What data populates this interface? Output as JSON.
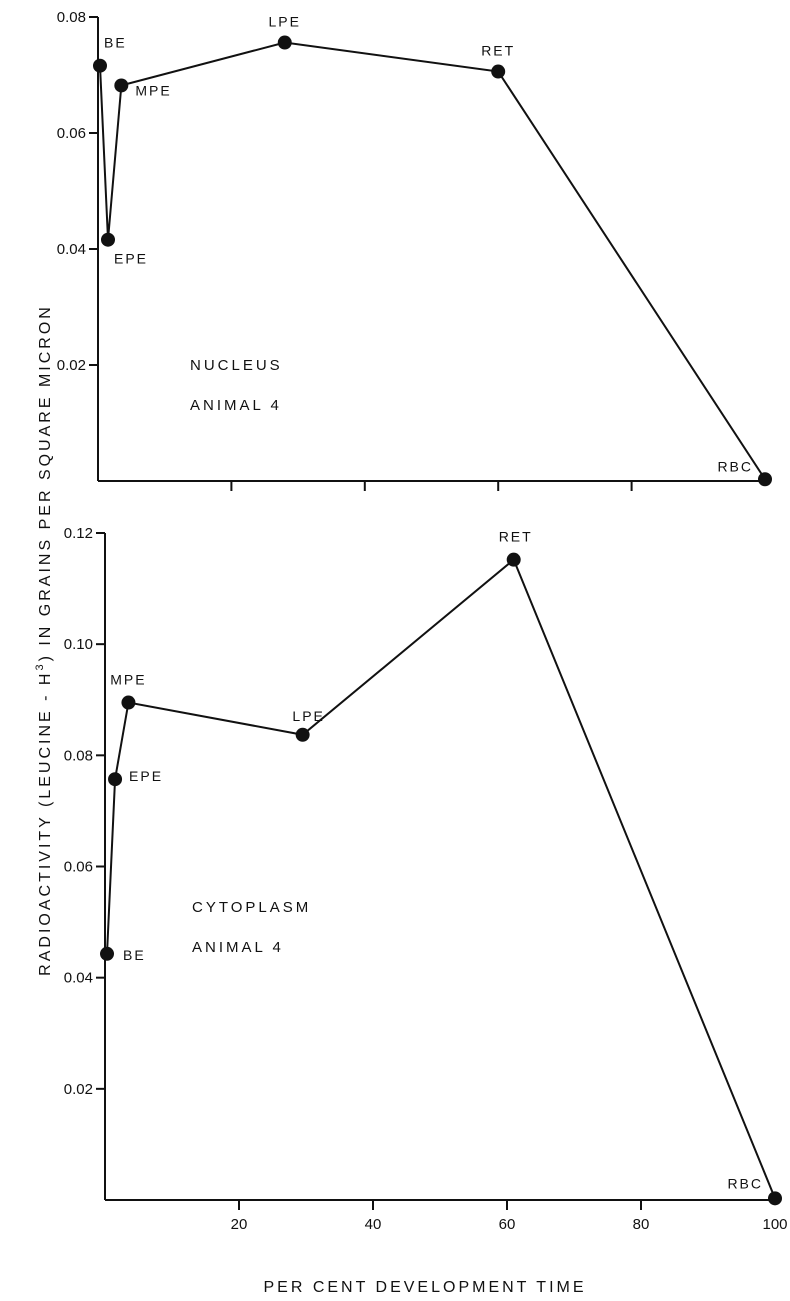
{
  "chart_data": {
    "type": "line",
    "xlabel": "PER CENT DEVELOPMENT TIME",
    "ylabel_parts": [
      "RADIOACTIVITY  (LEUCINE - H",
      "3",
      ")  IN  GRAINS  PER  SQUARE  MICRON"
    ],
    "x_ticks": [
      20,
      40,
      60,
      80,
      100
    ],
    "x_tick_labels": [
      "20",
      "40",
      "60",
      "80",
      "100"
    ],
    "panels": [
      {
        "id": "nucleus",
        "labels": [
          "NUCLEUS",
          "ANIMAL 4"
        ],
        "ylim": [
          0,
          0.08
        ],
        "xlim": [
          0,
          100
        ],
        "y_ticks": [
          0.02,
          0.04,
          0.06,
          0.08
        ],
        "y_tick_labels": [
          "0.02",
          "0.04",
          "0.06",
          "0.08"
        ],
        "x_tick_labels_shown": false,
        "points": [
          {
            "label": "BE",
            "x": 0.3,
            "y": 0.0716
          },
          {
            "label": "EPE",
            "x": 1.5,
            "y": 0.0416
          },
          {
            "label": "MPE",
            "x": 3.5,
            "y": 0.0682
          },
          {
            "label": "LPE",
            "x": 28,
            "y": 0.0756
          },
          {
            "label": "RET",
            "x": 60,
            "y": 0.0706
          },
          {
            "label": "RBC",
            "x": 100,
            "y": 0.0003
          }
        ]
      },
      {
        "id": "cytoplasm",
        "labels": [
          "CYTOPLASM",
          "ANIMAL 4"
        ],
        "ylim": [
          0,
          0.12
        ],
        "xlim": [
          0,
          100
        ],
        "y_ticks": [
          0.02,
          0.04,
          0.06,
          0.08,
          0.1,
          0.12
        ],
        "y_tick_labels": [
          "0.02",
          "0.04",
          "0.06",
          "0.08",
          "0.10",
          "0.12"
        ],
        "x_tick_labels_shown": true,
        "points": [
          {
            "label": "BE",
            "x": 0.3,
            "y": 0.0443
          },
          {
            "label": "EPE",
            "x": 1.5,
            "y": 0.0757
          },
          {
            "label": "MPE",
            "x": 3.5,
            "y": 0.0895
          },
          {
            "label": "LPE",
            "x": 29.5,
            "y": 0.0837
          },
          {
            "label": "RET",
            "x": 61,
            "y": 0.1152
          },
          {
            "label": "RBC",
            "x": 100,
            "y": 0.0003
          }
        ]
      }
    ]
  }
}
